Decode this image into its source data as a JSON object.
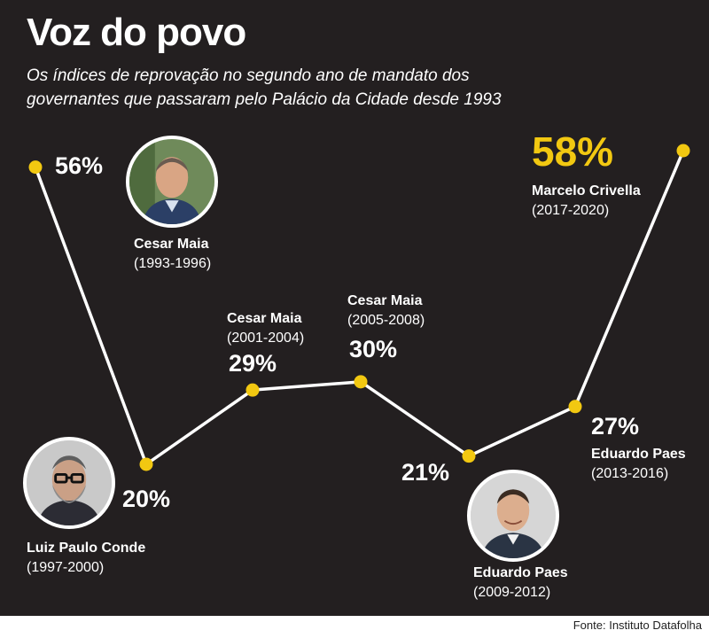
{
  "header": {
    "title": "Voz do povo",
    "subtitle": "Os índices de reprovação no segundo ano de mandato dos governantes que passaram pelo Palácio da Cidade desde 1993"
  },
  "chart_data": {
    "type": "line",
    "title": "Voz do povo",
    "subtitle": "Os índices de reprovação no segundo ano de mandato dos governantes que passaram pelo Palácio da Cidade desde 1993",
    "xlabel": "",
    "ylabel": "",
    "grid": false,
    "ylim": [
      0,
      60
    ],
    "points": [
      {
        "value": 56,
        "label": "56%",
        "name": "Cesar Maia",
        "period": "(1993-1996)"
      },
      {
        "value": 20,
        "label": "20%",
        "name": "Luiz Paulo Conde",
        "period": "(1997-2000)"
      },
      {
        "value": 29,
        "label": "29%",
        "name": "Cesar Maia",
        "period": "(2001-2004)"
      },
      {
        "value": 30,
        "label": "30%",
        "name": "Cesar Maia",
        "period": "(2005-2008)"
      },
      {
        "value": 21,
        "label": "21%",
        "name": "Eduardo Paes",
        "period": "(2009-2012)"
      },
      {
        "value": 27,
        "label": "27%",
        "name": "Eduardo Paes",
        "period": "(2013-2016)"
      },
      {
        "value": 58,
        "label": "58%",
        "name": "Marcelo Crivella",
        "period": "(2017-2020)"
      }
    ]
  },
  "colors": {
    "background": "#231f20",
    "line": "#ffffff",
    "marker": "#f2c811",
    "highlight": "#f2c811",
    "text": "#ffffff"
  },
  "photos": [
    "cesar-maia-photo",
    "luiz-paulo-conde-photo",
    "eduardo-paes-photo"
  ],
  "footer": {
    "source": "Fonte: Instituto Datafolha"
  }
}
